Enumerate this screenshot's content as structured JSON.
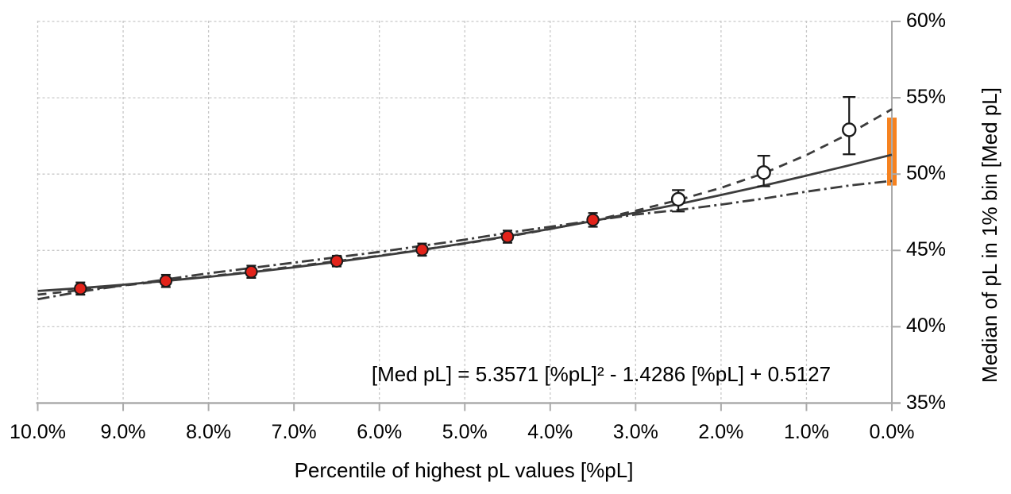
{
  "chart_data": {
    "type": "scatter",
    "title": "",
    "xlabel": "Percentile of highest pL values [%pL]",
    "ylabel": "Median of pL in 1% bin [Med pL]",
    "equation": "[Med pL] = 5.3571 [%pL]² - 1.4286 [%pL] + 0.5127",
    "fit_equation_coefficients": {
      "a2": 5.3571,
      "a1": -1.4286,
      "a0": 0.5127
    },
    "grid": true,
    "x_axis": {
      "reversed": true,
      "min": 10.0,
      "max": 0.0,
      "tick_values": [
        10,
        9,
        8,
        7,
        6,
        5,
        4,
        3,
        2,
        1,
        0
      ],
      "tick_labels": [
        "10.0%",
        "9.0%",
        "8.0%",
        "7.0%",
        "6.0%",
        "5.0%",
        "4.0%",
        "3.0%",
        "2.0%",
        "1.0%",
        "0.0%"
      ]
    },
    "y_axis": {
      "min": 35,
      "max": 60,
      "tick_values": [
        60,
        55,
        50,
        45,
        40,
        35
      ],
      "tick_labels": [
        "60%",
        "55%",
        "50%",
        "45%",
        "40%",
        "35%"
      ]
    },
    "series": [
      {
        "name": "median-points-filled",
        "marker": "filled-circle",
        "marker_color": "#e2231a",
        "points": [
          {
            "x": 9.5,
            "y": 42.5,
            "lo": 42.1,
            "hi": 42.9
          },
          {
            "x": 8.5,
            "y": 43.0,
            "lo": 42.6,
            "hi": 43.4
          },
          {
            "x": 7.5,
            "y": 43.6,
            "lo": 43.2,
            "hi": 44.0
          },
          {
            "x": 6.5,
            "y": 44.3,
            "lo": 43.95,
            "hi": 44.65
          },
          {
            "x": 5.5,
            "y": 45.05,
            "lo": 44.65,
            "hi": 45.45
          },
          {
            "x": 4.5,
            "y": 45.9,
            "lo": 45.5,
            "hi": 46.3
          },
          {
            "x": 3.5,
            "y": 47.0,
            "lo": 46.55,
            "hi": 47.45
          }
        ]
      },
      {
        "name": "median-points-open",
        "marker": "open-circle",
        "marker_color": "#ffffff",
        "points": [
          {
            "x": 2.5,
            "y": 48.35,
            "lo": 47.55,
            "hi": 48.95
          },
          {
            "x": 1.5,
            "y": 50.1,
            "lo": 49.2,
            "hi": 51.2
          },
          {
            "x": 0.5,
            "y": 52.9,
            "lo": 51.3,
            "hi": 55.05
          }
        ]
      },
      {
        "name": "quadratic-fit-line",
        "style": "solid",
        "color": "#3c3c3c",
        "points": [
          [
            10,
            42.34
          ],
          [
            9.5,
            42.53
          ],
          [
            9,
            42.75
          ],
          [
            8.5,
            43.0
          ],
          [
            8,
            43.27
          ],
          [
            7.5,
            43.57
          ],
          [
            7,
            43.89
          ],
          [
            6.5,
            44.25
          ],
          [
            6,
            44.63
          ],
          [
            5.5,
            45.03
          ],
          [
            5,
            45.47
          ],
          [
            4.5,
            45.93
          ],
          [
            4,
            46.41
          ],
          [
            3.5,
            46.93
          ],
          [
            3,
            47.47
          ],
          [
            2.5,
            48.03
          ],
          [
            2,
            48.63
          ],
          [
            1.5,
            49.25
          ],
          [
            1,
            49.9
          ],
          [
            0.5,
            50.57
          ],
          [
            0,
            51.27
          ]
        ]
      },
      {
        "name": "upper-fit-line",
        "style": "dashed",
        "color": "#3c3c3c",
        "points": [
          [
            10,
            42.1
          ],
          [
            9.5,
            42.4
          ],
          [
            9,
            42.7
          ],
          [
            8.5,
            43.0
          ],
          [
            8,
            43.3
          ],
          [
            7.5,
            43.6
          ],
          [
            7,
            43.95
          ],
          [
            6.5,
            44.3
          ],
          [
            6,
            44.65
          ],
          [
            5.5,
            45.05
          ],
          [
            5,
            45.45
          ],
          [
            4.5,
            45.9
          ],
          [
            4,
            46.4
          ],
          [
            3.5,
            46.95
          ],
          [
            3,
            47.6
          ],
          [
            2.5,
            48.3
          ],
          [
            2,
            49.1
          ],
          [
            1.5,
            50.05
          ],
          [
            1,
            51.25
          ],
          [
            0.5,
            52.65
          ],
          [
            0,
            54.25
          ]
        ]
      },
      {
        "name": "lower-fit-line",
        "style": "dash-dot",
        "color": "#3c3c3c",
        "points": [
          [
            10,
            41.8
          ],
          [
            9.5,
            42.3
          ],
          [
            9,
            42.7
          ],
          [
            8.5,
            43.1
          ],
          [
            8,
            43.5
          ],
          [
            7.5,
            43.85
          ],
          [
            7,
            44.2
          ],
          [
            6.5,
            44.55
          ],
          [
            6,
            44.9
          ],
          [
            5.5,
            45.3
          ],
          [
            5,
            45.7
          ],
          [
            4.5,
            46.15
          ],
          [
            4,
            46.55
          ],
          [
            3.5,
            46.95
          ],
          [
            3,
            47.35
          ],
          [
            2.5,
            47.65
          ],
          [
            2,
            48.0
          ],
          [
            1.5,
            48.4
          ],
          [
            1,
            48.85
          ],
          [
            0.5,
            49.25
          ],
          [
            0,
            49.55
          ]
        ]
      }
    ],
    "extrapolation_bar": {
      "x": 0.0,
      "y_low": 49.25,
      "y_high": 53.7,
      "color": "#f6821f"
    },
    "colors": {
      "grid": "#c8c8c8",
      "axis": "#ababab",
      "line": "#3c3c3c",
      "error_bar": "#1a1a1a",
      "marker_red": "#e2231a",
      "marker_open": "#ffffff",
      "bar_orange": "#f6821f",
      "text": "#000000"
    }
  }
}
